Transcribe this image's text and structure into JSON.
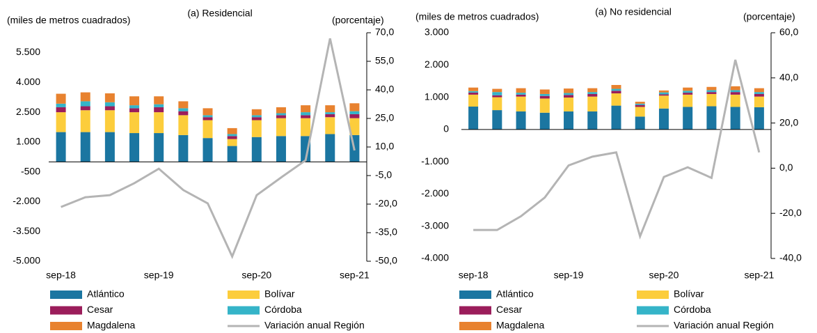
{
  "chart_data": [
    {
      "type": "bar",
      "title": "(a) Residencial",
      "y_label": "(miles de metros cuadrados)",
      "y2_label": "(porcentaje)",
      "categories": [
        "sep-18",
        null,
        null,
        null,
        "sep-19",
        null,
        null,
        null,
        "sep-20",
        null,
        null,
        null,
        "sep-21"
      ],
      "ylim": [
        -5000,
        6500
      ],
      "yticks": [
        {
          "value": -5000,
          "label": "-5.000"
        },
        {
          "value": -3500,
          "label": "-3.500"
        },
        {
          "value": -2000,
          "label": "-2.000"
        },
        -500,
        {
          "value": 1000,
          "label": "1.000"
        },
        {
          "value": 2500,
          "label": "2.500"
        },
        {
          "value": 4000,
          "label": "4.000"
        },
        {
          "value": 5500,
          "label": "5.500"
        }
      ],
      "y2lim": [
        -50,
        70
      ],
      "y2ticks": [
        {
          "value": -50,
          "label": "-50,0"
        },
        {
          "value": -35,
          "label": "-35,0"
        },
        {
          "value": -20,
          "label": "-20,0"
        },
        {
          "value": -5,
          "label": "-5,0"
        },
        {
          "value": 10,
          "label": "10,0"
        },
        {
          "value": 25,
          "label": "25,0"
        },
        {
          "value": 40,
          "label": "40,0"
        },
        {
          "value": 55,
          "label": "55,0"
        },
        {
          "value": 70,
          "label": "70,0"
        }
      ],
      "series": [
        {
          "name": "Atlántico",
          "color": "#1b76a1",
          "values": [
            1500,
            1500,
            1500,
            1450,
            1450,
            1350,
            1200,
            800,
            1250,
            1300,
            1300,
            1400,
            1350
          ]
        },
        {
          "name": "Bolívar",
          "color": "#fccd3c",
          "values": [
            1000,
            1100,
            1100,
            1050,
            1050,
            1000,
            900,
            350,
            850,
            900,
            900,
            850,
            850
          ]
        },
        {
          "name": "Cesar",
          "color": "#9b1d5b",
          "values": [
            250,
            200,
            200,
            200,
            250,
            200,
            150,
            150,
            150,
            150,
            150,
            150,
            200
          ]
        },
        {
          "name": "Córdoba",
          "color": "#35b4c8",
          "values": [
            180,
            250,
            200,
            150,
            150,
            150,
            100,
            100,
            100,
            100,
            150,
            100,
            150
          ]
        },
        {
          "name": "Magdalena",
          "color": "#e8822f",
          "values": [
            500,
            450,
            450,
            450,
            400,
            350,
            350,
            300,
            300,
            300,
            350,
            350,
            400
          ]
        },
        {
          "name": "Variación anual Región",
          "color": "#b4b4b4",
          "type": "line",
          "axis": "y2",
          "values": [
            -21.5,
            -16.4,
            -15.3,
            -9,
            -1.4,
            -12.6,
            -19.6,
            -47.5,
            -15.3,
            -6,
            3,
            67,
            8.2
          ]
        }
      ]
    },
    {
      "type": "bar",
      "title": "(a) No residencial",
      "y_label": "(miles de metros cuadrados)",
      "y2_label": "(porcentaje)",
      "categories": [
        "sep-18",
        null,
        null,
        null,
        "sep-19",
        null,
        null,
        null,
        "sep-20",
        null,
        null,
        null,
        "sep-21"
      ],
      "ylim": [
        -4000,
        3000
      ],
      "yticks": [
        {
          "value": -4000,
          "label": "-4.000"
        },
        {
          "value": -3000,
          "label": "-3.000"
        },
        {
          "value": -2000,
          "label": "-2.000"
        },
        {
          "value": -1000,
          "label": "-1.000"
        },
        0,
        {
          "value": 1000,
          "label": "1.000"
        },
        {
          "value": 2000,
          "label": "2.000"
        },
        {
          "value": 3000,
          "label": "3.000"
        }
      ],
      "y2lim": [
        -40,
        60
      ],
      "y2ticks": [
        {
          "value": -40,
          "label": "-40,0"
        },
        {
          "value": -20,
          "label": "-20,0"
        },
        {
          "value": 0,
          "label": "0,0"
        },
        {
          "value": 20,
          "label": "20,0"
        },
        {
          "value": 40,
          "label": "40,0"
        },
        {
          "value": 60,
          "label": "60,0"
        }
      ],
      "series": [
        {
          "name": "Atlántico",
          "color": "#1b76a1",
          "values": [
            710,
            600,
            560,
            520,
            560,
            560,
            740,
            400,
            650,
            700,
            720,
            700,
            690
          ]
        },
        {
          "name": "Bolívar",
          "color": "#fccd3c",
          "values": [
            370,
            400,
            460,
            440,
            430,
            460,
            380,
            300,
            400,
            380,
            380,
            380,
            330
          ]
        },
        {
          "name": "Cesar",
          "color": "#9b1d5b",
          "values": [
            65,
            60,
            60,
            80,
            80,
            80,
            80,
            60,
            40,
            60,
            60,
            80,
            80
          ]
        },
        {
          "name": "Córdoba",
          "color": "#35b4c8",
          "values": [
            45,
            100,
            60,
            60,
            60,
            60,
            60,
            40,
            60,
            60,
            60,
            60,
            60
          ]
        },
        {
          "name": "Magdalena",
          "color": "#e8822f",
          "values": [
            110,
            100,
            140,
            140,
            140,
            120,
            120,
            60,
            60,
            100,
            100,
            120,
            120
          ]
        },
        {
          "name": "Variación anual Región",
          "color": "#b4b4b4",
          "type": "line",
          "axis": "y2",
          "values": [
            -27.4,
            -27.4,
            -21.3,
            -13,
            1.2,
            5.1,
            7,
            -30.2,
            -3.9,
            0.4,
            -4.3,
            48,
            7
          ]
        }
      ]
    }
  ]
}
